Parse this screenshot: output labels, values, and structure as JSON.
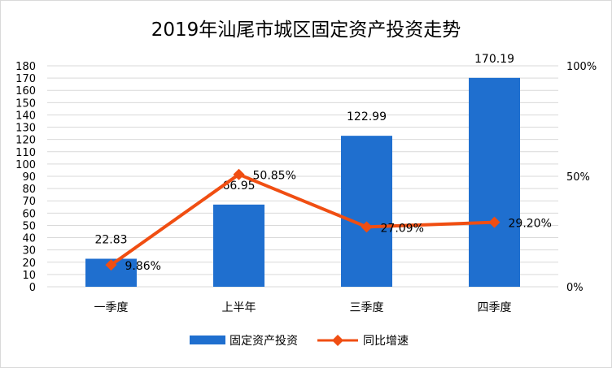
{
  "chart_data": {
    "type": "bar",
    "title": "2019年汕尾市城区固定资产投资走势",
    "categories": [
      "一季度",
      "上半年",
      "三季度",
      "四季度"
    ],
    "series": [
      {
        "name": "固定资产投资",
        "kind": "bar",
        "axis": "left",
        "color": "#1F6FCF",
        "values": [
          22.83,
          66.95,
          122.99,
          170.19
        ],
        "labels": [
          "22.83",
          "66.95",
          "122.99",
          "170.19"
        ]
      },
      {
        "name": "同比增速",
        "kind": "line",
        "axis": "right",
        "color": "#F04E12",
        "values": [
          9.86,
          50.85,
          27.09,
          29.2
        ],
        "labels": [
          "9.86%",
          "50.85%",
          "27.09%",
          "29.20%"
        ]
      }
    ],
    "y_left": {
      "min": 0,
      "max": 180,
      "ticks": [
        "0",
        "10",
        "20",
        "30",
        "40",
        "50",
        "60",
        "70",
        "80",
        "90",
        "100",
        "110",
        "120",
        "130",
        "140",
        "150",
        "160",
        "170",
        "180"
      ]
    },
    "y_right": {
      "min": 0,
      "max": 100,
      "ticks": [
        "0%",
        "50%",
        "100%"
      ]
    },
    "grid": true,
    "legend": "bottom"
  }
}
